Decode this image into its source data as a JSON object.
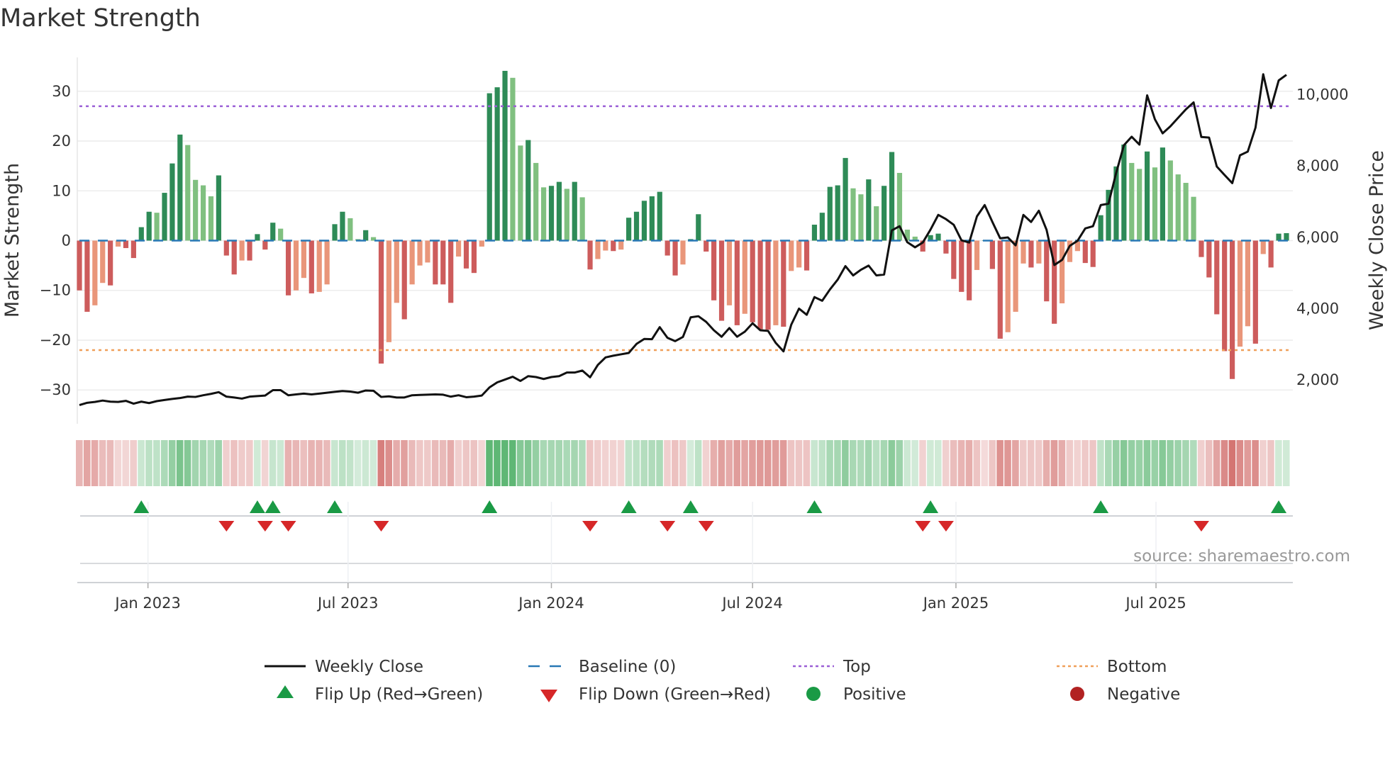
{
  "title": "Market Strength",
  "source": "source: sharemaestro.com",
  "colors": {
    "dark_green": "#2e8b57",
    "light_green": "#80c080",
    "dark_red": "#cd5c5c",
    "light_red": "#e9967a",
    "baseline": "#2878b5",
    "top": "#9b5fd6",
    "bottom": "#f0a05a",
    "line": "#111111",
    "flip_up": "#1a9a45",
    "flip_down": "#d62728",
    "positive": "#1a9a45",
    "negative": "#b22222"
  },
  "chart_data": {
    "type": "bar",
    "title": "Market Strength",
    "start_date": "2022-10-31",
    "frequency": "weekly",
    "ylabel": "Market Strength",
    "y2label": "Weekly Close Price",
    "ylim": [
      -36.8,
      36.8
    ],
    "y2lim": [
      750,
      11025
    ],
    "yticks": [
      30,
      20,
      10,
      0,
      -10,
      -20,
      -30
    ],
    "ytick_labels": [
      "30",
      "20",
      "10",
      "0",
      "−10",
      "−20",
      "−30"
    ],
    "y2ticks": [
      10000,
      8000,
      6000,
      4000,
      2000
    ],
    "y2tick_labels": [
      "10,000",
      "8,000",
      "6,000",
      "4,000",
      "2,000"
    ],
    "xticks": [
      {
        "date": "2023-01-01",
        "label": "Jan 2023"
      },
      {
        "date": "2023-07-01",
        "label": "Jul 2023"
      },
      {
        "date": "2024-01-01",
        "label": "Jan 2024"
      },
      {
        "date": "2024-07-01",
        "label": "Jul 2024"
      },
      {
        "date": "2025-01-01",
        "label": "Jan 2025"
      },
      {
        "date": "2025-07-01",
        "label": "Jul 2025"
      }
    ],
    "top": 27,
    "bottom": -22,
    "baseline": 0,
    "strength": [
      -10,
      -14.3,
      -13,
      -8.5,
      -9,
      -1.2,
      -1.5,
      -3.5,
      2.7,
      5.8,
      5.6,
      9.6,
      15.5,
      21.3,
      19.2,
      12.2,
      11.1,
      8.9,
      13.1,
      -3,
      -6.8,
      -4,
      -4,
      1.3,
      -1.8,
      3.6,
      2.4,
      -11,
      -10,
      -7.5,
      -10.6,
      -10.3,
      -8.8,
      3.3,
      5.8,
      4.5,
      0.3,
      2.1,
      0.7,
      -24.7,
      -20.4,
      -12.5,
      -15.8,
      -8.8,
      -5,
      -4.4,
      -8.8,
      -8.8,
      -12.5,
      -3.2,
      -5.6,
      -6.5,
      -1.2,
      29.6,
      30.8,
      34.1,
      32.7,
      19.1,
      20.2,
      15.6,
      10.7,
      11,
      11.8,
      10.4,
      11.8,
      8.7,
      -5.8,
      -3.7,
      -2,
      -2.1,
      -1.8,
      4.6,
      5.8,
      8,
      8.9,
      9.8,
      -3,
      -7,
      -4.8,
      0.3,
      5.3,
      -2.2,
      -12,
      -16.1,
      -13,
      -17,
      -14.7,
      -16.4,
      -17.8,
      -17.9,
      -17,
      -17.3,
      -6.1,
      -5.4,
      -6,
      3.2,
      5.6,
      10.8,
      11.1,
      16.6,
      10.5,
      9.3,
      12.3,
      6.9,
      11,
      17.8,
      13.6,
      2.2,
      0.8,
      -2.2,
      1.1,
      1.4,
      -2.6,
      -7.7,
      -10.3,
      -12,
      -5.9,
      0,
      -5.7,
      -19.7,
      -18.4,
      -14.3,
      -4.6,
      -5.4,
      -4.6,
      -12.2,
      -16.7,
      -12.6,
      -4.3,
      -2.1,
      -4.5,
      -5.3,
      5.1,
      10.2,
      14.9,
      19.3,
      15.6,
      14.4,
      17.9,
      14.7,
      18.7,
      16.1,
      13.3,
      11.6,
      8.8,
      -3.3,
      -7.4,
      -14.8,
      -22.2,
      -27.8,
      -21.3,
      -17.2,
      -20.7,
      -2.7,
      -5.4,
      1.4,
      1.5
    ],
    "weekly_close": [
      1276,
      1339,
      1363,
      1402,
      1371,
      1363,
      1394,
      1315,
      1371,
      1331,
      1386,
      1418,
      1449,
      1473,
      1512,
      1504,
      1551,
      1590,
      1638,
      1512,
      1488,
      1457,
      1512,
      1528,
      1543,
      1693,
      1693,
      1551,
      1575,
      1598,
      1575,
      1598,
      1622,
      1646,
      1669,
      1654,
      1622,
      1685,
      1677,
      1504,
      1520,
      1488,
      1488,
      1551,
      1559,
      1567,
      1575,
      1567,
      1512,
      1551,
      1496,
      1512,
      1543,
      1771,
      1913,
      1991,
      2070,
      1952,
      2086,
      2062,
      2007,
      2062,
      2086,
      2188,
      2188,
      2243,
      2054,
      2400,
      2612,
      2660,
      2699,
      2738,
      2990,
      3131,
      3123,
      3461,
      3163,
      3068,
      3186,
      3736,
      3767,
      3609,
      3373,
      3191,
      3436,
      3191,
      3333,
      3570,
      3373,
      3357,
      3018,
      2781,
      3530,
      3980,
      3807,
      4304,
      4201,
      4517,
      4793,
      5172,
      4911,
      5069,
      5187,
      4911,
      4935,
      6174,
      6292,
      5842,
      5700,
      5834,
      6197,
      6608,
      6489,
      6331,
      5897,
      5834,
      6568,
      6884,
      6410,
      5953,
      5976,
      5755,
      6608,
      6410,
      6726,
      6189,
      5203,
      5345,
      5740,
      5882,
      6229,
      6292,
      6884,
      6923,
      7791,
      8564,
      8801,
      8580,
      9961,
      9290,
      8896,
      9093,
      9330,
      9566,
      9764,
      8793,
      8777,
      7965,
      7728,
      7499,
      8280,
      8383,
      9053,
      10553,
      9606,
      10379,
      10537
    ],
    "legend": {
      "placement": "bottom",
      "items": [
        {
          "label": "Weekly Close",
          "kind": "line"
        },
        {
          "label": "Baseline (0)",
          "kind": "dash"
        },
        {
          "label": "Top",
          "kind": "dot-top"
        },
        {
          "label": "Bottom",
          "kind": "dot-bottom"
        },
        {
          "label": "Flip Up (Red→Green)",
          "kind": "tri-up"
        },
        {
          "label": "Flip Down (Green→Red)",
          "kind": "tri-down"
        },
        {
          "label": "Positive",
          "kind": "circle-pos"
        },
        {
          "label": "Negative",
          "kind": "circle-neg"
        }
      ]
    }
  }
}
